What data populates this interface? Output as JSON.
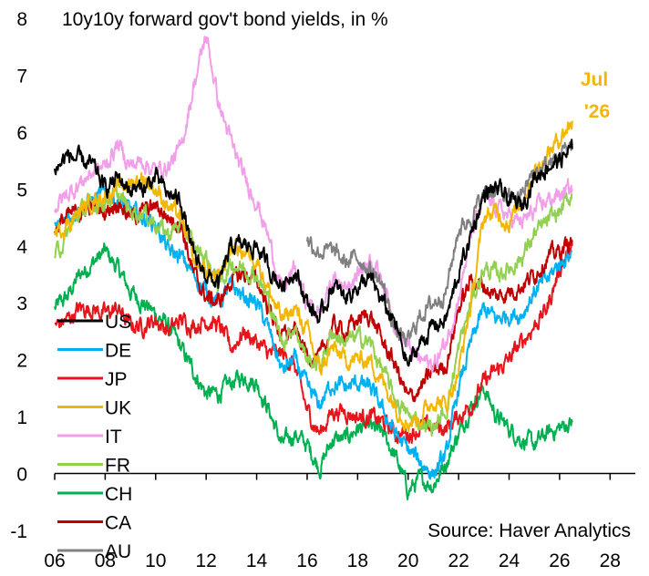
{
  "chart_data": {
    "type": "line",
    "title": "10y10y forward gov't bond yields, in %",
    "source": "Source: Haver Analytics",
    "annotation": {
      "line1": "Jul",
      "line2": "'26",
      "color": "#f2b705"
    },
    "xlim": [
      2006,
      2029
    ],
    "ylim": [
      -1,
      8
    ],
    "x_ticks": [
      2006,
      2008,
      2010,
      2012,
      2014,
      2016,
      2018,
      2020,
      2022,
      2024,
      2026,
      2028
    ],
    "x_tick_labels": [
      "06",
      "08",
      "10",
      "12",
      "14",
      "16",
      "18",
      "20",
      "22",
      "24",
      "26",
      "28"
    ],
    "y_ticks": [
      -1,
      0,
      1,
      2,
      3,
      4,
      5,
      6,
      7,
      8
    ],
    "y_tick_labels": [
      "-1",
      "0",
      "1",
      "2",
      "3",
      "4",
      "5",
      "6",
      "7",
      "8"
    ],
    "grid": false,
    "legend_position": "left",
    "series": [
      {
        "name": "US",
        "color": "#000000",
        "x": [
          2006,
          2006.5,
          2007,
          2007.5,
          2008,
          2008.5,
          2009,
          2009.5,
          2010,
          2010.5,
          2011,
          2011.5,
          2012,
          2012.5,
          2013,
          2013.5,
          2014,
          2014.5,
          2015,
          2015.5,
          2016,
          2016.5,
          2017,
          2017.5,
          2018,
          2018.5,
          2019,
          2019.5,
          2020,
          2020.5,
          2021,
          2021.5,
          2022,
          2022.5,
          2023,
          2023.5,
          2024,
          2024.5,
          2025,
          2025.5,
          2026,
          2026.5
        ],
        "y": [
          5.3,
          5.6,
          5.5,
          5.4,
          5.0,
          5.2,
          5.0,
          5.0,
          5.2,
          4.9,
          4.8,
          3.8,
          3.5,
          3.3,
          4.0,
          4.0,
          4.0,
          3.6,
          3.3,
          3.6,
          3.0,
          2.7,
          3.3,
          3.1,
          3.3,
          3.4,
          3.0,
          2.6,
          1.9,
          2.3,
          2.6,
          2.7,
          3.5,
          4.2,
          4.9,
          5.0,
          4.8,
          4.7,
          5.2,
          5.4,
          5.5,
          5.7
        ]
      },
      {
        "name": "DE",
        "color": "#00b0f0",
        "x": [
          2006,
          2006.5,
          2007,
          2007.5,
          2008,
          2008.5,
          2009,
          2009.5,
          2010,
          2010.5,
          2011,
          2011.5,
          2012,
          2012.5,
          2013,
          2013.5,
          2014,
          2014.5,
          2015,
          2015.5,
          2016,
          2016.5,
          2017,
          2017.5,
          2018,
          2018.5,
          2019,
          2019.5,
          2020,
          2020.5,
          2021,
          2021.5,
          2022,
          2022.5,
          2023,
          2023.5,
          2024,
          2024.5,
          2025,
          2025.5,
          2026,
          2026.5
        ],
        "y": [
          4.3,
          4.5,
          4.7,
          4.8,
          4.9,
          4.8,
          4.6,
          4.5,
          4.4,
          3.9,
          3.8,
          3.5,
          3.2,
          3.0,
          3.3,
          3.1,
          3.0,
          2.5,
          1.8,
          2.0,
          1.5,
          1.2,
          1.6,
          1.5,
          1.6,
          1.5,
          1.1,
          0.7,
          0.4,
          0.2,
          0.0,
          0.3,
          1.5,
          2.3,
          2.9,
          2.7,
          2.8,
          2.8,
          3.2,
          3.4,
          3.7,
          3.9
        ]
      },
      {
        "name": "JP",
        "color": "#e8141b",
        "x": [
          2006,
          2006.5,
          2007,
          2007.5,
          2008,
          2008.5,
          2009,
          2009.5,
          2010,
          2010.5,
          2011,
          2011.5,
          2012,
          2012.5,
          2013,
          2013.5,
          2014,
          2014.5,
          2015,
          2015.5,
          2016,
          2016.5,
          2017,
          2017.5,
          2018,
          2018.5,
          2019,
          2019.5,
          2020,
          2020.5,
          2021,
          2021.5,
          2022,
          2022.5,
          2023,
          2023.5,
          2024,
          2024.5,
          2025,
          2025.5,
          2026,
          2026.5
        ],
        "y": [
          2.6,
          2.7,
          2.9,
          2.9,
          2.8,
          2.9,
          2.6,
          2.6,
          2.7,
          2.5,
          2.7,
          2.6,
          2.7,
          2.6,
          2.2,
          2.5,
          2.3,
          2.1,
          2.1,
          1.9,
          1.1,
          0.7,
          1.1,
          1.1,
          1.0,
          1.0,
          0.9,
          0.7,
          0.7,
          0.8,
          0.8,
          0.8,
          1.0,
          1.2,
          1.6,
          1.8,
          2.0,
          2.3,
          2.6,
          2.9,
          3.6,
          4.0
        ]
      },
      {
        "name": "UK",
        "color": "#f2b705",
        "x": [
          2006,
          2006.5,
          2007,
          2007.5,
          2008,
          2008.5,
          2009,
          2009.5,
          2010,
          2010.5,
          2011,
          2011.5,
          2012,
          2012.5,
          2013,
          2013.5,
          2014,
          2014.5,
          2015,
          2015.5,
          2016,
          2016.5,
          2017,
          2017.5,
          2018,
          2018.5,
          2019,
          2019.5,
          2020,
          2020.5,
          2021,
          2021.5,
          2022,
          2022.5,
          2023,
          2023.5,
          2024,
          2024.5,
          2025,
          2025.5,
          2026,
          2026.5
        ],
        "y": [
          4.2,
          4.4,
          4.6,
          4.8,
          4.9,
          5.0,
          5.1,
          5.2,
          5.0,
          4.7,
          4.5,
          3.7,
          3.6,
          3.4,
          4.0,
          3.9,
          3.8,
          3.2,
          2.7,
          2.9,
          2.5,
          1.8,
          2.2,
          2.0,
          2.0,
          2.0,
          1.6,
          1.2,
          0.9,
          1.0,
          1.3,
          1.2,
          1.8,
          3.0,
          4.5,
          4.6,
          4.4,
          4.8,
          5.3,
          5.6,
          5.9,
          6.2
        ]
      },
      {
        "name": "IT",
        "color": "#f39ee8",
        "x": [
          2006,
          2006.5,
          2007,
          2007.5,
          2008,
          2008.5,
          2009,
          2009.5,
          2010,
          2010.5,
          2011,
          2011.5,
          2012,
          2012.5,
          2013,
          2013.5,
          2014,
          2014.5,
          2015,
          2015.5,
          2016,
          2016.5,
          2017,
          2017.5,
          2018,
          2018.5,
          2019,
          2019.5,
          2020,
          2020.5,
          2021,
          2021.5,
          2022,
          2022.5,
          2023,
          2023.5,
          2024,
          2024.5,
          2025,
          2025.5,
          2026,
          2026.5
        ],
        "y": [
          4.7,
          4.9,
          5.1,
          5.3,
          5.4,
          5.8,
          5.4,
          5.5,
          5.3,
          5.4,
          5.7,
          6.8,
          7.7,
          6.5,
          5.8,
          5.2,
          4.8,
          4.1,
          3.2,
          3.6,
          3.0,
          2.8,
          3.4,
          3.3,
          3.5,
          3.8,
          3.4,
          2.6,
          2.2,
          2.0,
          1.9,
          2.3,
          3.1,
          4.2,
          4.8,
          4.7,
          4.5,
          4.4,
          4.6,
          4.8,
          4.9,
          5.0
        ]
      },
      {
        "name": "FR",
        "color": "#92d050",
        "x": [
          2006,
          2006.5,
          2007,
          2007.5,
          2008,
          2008.5,
          2009,
          2009.5,
          2010,
          2010.5,
          2011,
          2011.5,
          2012,
          2012.5,
          2013,
          2013.5,
          2014,
          2014.5,
          2015,
          2015.5,
          2016,
          2016.5,
          2017,
          2017.5,
          2018,
          2018.5,
          2019,
          2019.5,
          2020,
          2020.5,
          2021,
          2021.5,
          2022,
          2022.5,
          2023,
          2023.5,
          2024,
          2024.5,
          2025,
          2025.5,
          2026,
          2026.5
        ],
        "y": [
          3.8,
          4.2,
          4.6,
          4.7,
          4.8,
          4.9,
          4.6,
          4.6,
          4.4,
          4.2,
          4.4,
          4.0,
          3.8,
          3.3,
          3.7,
          3.6,
          3.5,
          3.0,
          2.3,
          2.6,
          2.0,
          1.9,
          2.5,
          2.3,
          2.4,
          2.3,
          1.8,
          1.3,
          1.0,
          0.9,
          0.8,
          1.1,
          2.2,
          3.0,
          3.6,
          3.5,
          3.6,
          3.8,
          4.2,
          4.4,
          4.6,
          4.9
        ]
      },
      {
        "name": "CH",
        "color": "#00b050",
        "x": [
          2006,
          2006.5,
          2007,
          2007.5,
          2008,
          2008.5,
          2009,
          2009.5,
          2010,
          2010.5,
          2011,
          2011.5,
          2012,
          2012.5,
          2013,
          2013.5,
          2014,
          2014.5,
          2015,
          2015.5,
          2016,
          2016.5,
          2017,
          2017.5,
          2018,
          2018.5,
          2019,
          2019.5,
          2020,
          2020.5,
          2021,
          2021.5,
          2022,
          2022.5,
          2023,
          2023.5,
          2024,
          2024.5,
          2025,
          2025.5,
          2026,
          2026.5
        ],
        "y": [
          2.9,
          3.1,
          3.5,
          3.7,
          3.9,
          3.6,
          3.2,
          3.0,
          2.8,
          2.6,
          2.2,
          1.8,
          1.4,
          1.4,
          1.6,
          1.7,
          1.6,
          1.1,
          0.5,
          0.7,
          0.5,
          0.1,
          0.6,
          0.6,
          0.8,
          0.8,
          0.7,
          0.3,
          -0.3,
          -0.1,
          -0.2,
          0.2,
          0.7,
          1.2,
          1.5,
          1.0,
          0.8,
          0.6,
          0.5,
          0.7,
          0.8,
          0.9
        ]
      },
      {
        "name": "CA",
        "color": "#c00000",
        "x": [
          2006,
          2006.5,
          2007,
          2007.5,
          2008,
          2008.5,
          2009,
          2009.5,
          2010,
          2010.5,
          2011,
          2011.5,
          2012,
          2012.5,
          2013,
          2013.5,
          2014,
          2014.5,
          2015,
          2015.5,
          2016,
          2016.5,
          2017,
          2017.5,
          2018,
          2018.5,
          2019,
          2019.5,
          2020,
          2020.5,
          2021,
          2021.5,
          2022,
          2022.5,
          2023,
          2023.5,
          2024,
          2024.5,
          2025,
          2025.5,
          2026,
          2026.5
        ],
        "y": [
          4.3,
          4.5,
          4.6,
          4.7,
          4.6,
          4.8,
          4.5,
          4.6,
          4.7,
          4.5,
          4.4,
          3.5,
          3.1,
          3.0,
          3.4,
          3.5,
          3.4,
          2.9,
          2.4,
          2.5,
          2.1,
          2.0,
          2.6,
          2.5,
          2.7,
          2.8,
          2.3,
          1.9,
          1.3,
          1.5,
          1.8,
          1.9,
          2.9,
          3.4,
          3.3,
          3.1,
          3.2,
          3.3,
          3.5,
          3.8,
          3.9,
          4.1
        ]
      },
      {
        "name": "AU",
        "color": "#808080",
        "x": [
          2016,
          2016.5,
          2017,
          2017.5,
          2018,
          2018.5,
          2019,
          2019.5,
          2020,
          2020.5,
          2021,
          2021.5,
          2022,
          2022.5,
          2023,
          2023.5,
          2024,
          2024.5,
          2025,
          2025.5,
          2026,
          2026.5
        ],
        "y": [
          4.1,
          3.9,
          3.9,
          3.7,
          3.8,
          3.6,
          3.3,
          2.5,
          2.3,
          2.8,
          3.0,
          3.2,
          4.3,
          4.5,
          4.9,
          5.0,
          4.8,
          4.9,
          5.3,
          5.4,
          5.6,
          5.8
        ]
      }
    ]
  }
}
